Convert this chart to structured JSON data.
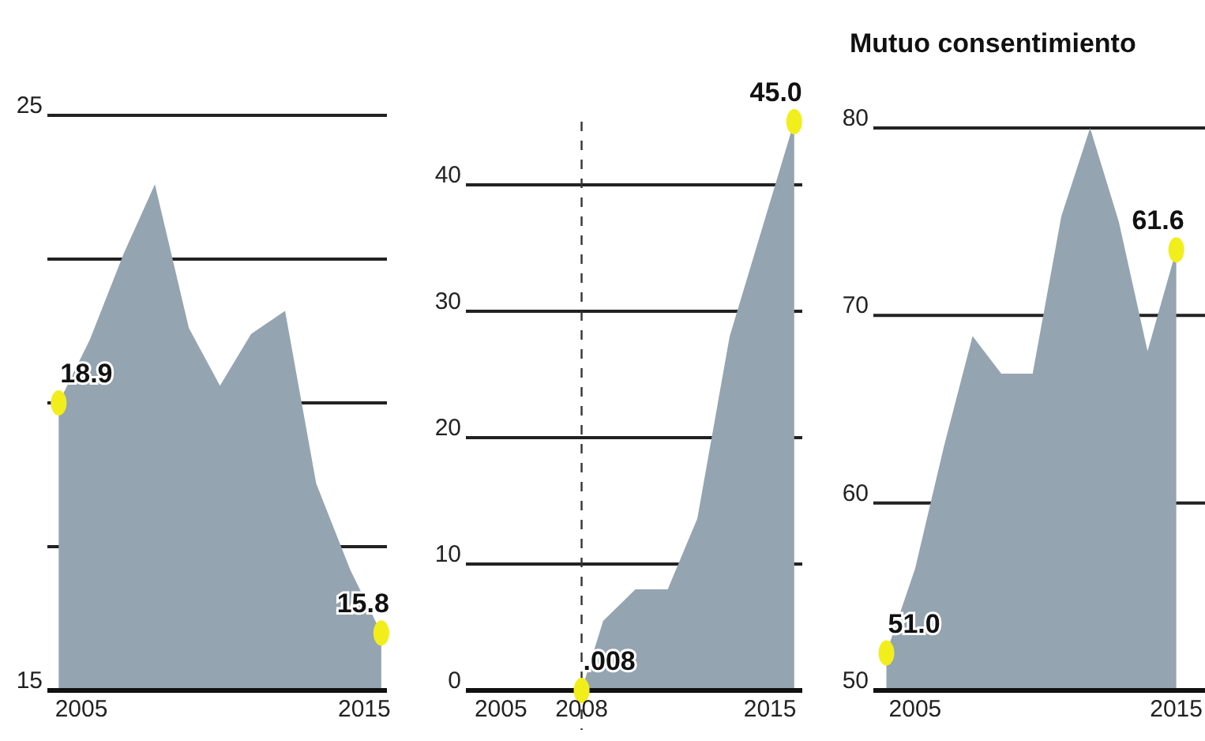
{
  "chart_data": [
    {
      "type": "area",
      "x": [
        2004.2,
        2005.3,
        2006.5,
        2007.6,
        2008.8,
        2009.9,
        2011.0,
        2012.2,
        2013.3,
        2014.5,
        2015.6
      ],
      "xlim": [
        2003.8,
        2015.8
      ],
      "xticks": [
        2005,
        2015
      ],
      "ylim": [
        15,
        25
      ],
      "yticks": [
        15,
        {
          "value": 17.5,
          "label": null
        },
        {
          "value": 20,
          "label": null
        },
        {
          "value": 22.5,
          "label": null
        },
        25
      ],
      "grid": "y",
      "annotations": [
        {
          "text": "18.9",
          "x": 2004.2,
          "y": 20.0
        },
        {
          "text": "15.8",
          "x": 2015.6,
          "y": 16.0
        }
      ],
      "series": [
        {
          "color": "#95a4b1",
          "values": [
            20.0,
            21.1,
            22.6,
            23.8,
            21.3,
            20.3,
            21.2,
            21.6,
            18.6,
            17.1,
            16.0
          ]
        }
      ]
    },
    {
      "type": "area",
      "x": [
        2004.1,
        2005.3,
        2006.5,
        2008.0,
        2008.8,
        2010.0,
        2011.2,
        2012.3,
        2013.5,
        2014.7,
        2015.9
      ],
      "xlim": [
        2003.7,
        2016.2
      ],
      "xticks": [
        2005,
        2008,
        2015
      ],
      "ylim": [
        0,
        45
      ],
      "yticks": [
        0,
        10,
        20,
        30,
        40
      ],
      "grid": "y",
      "ref_lines": [
        {
          "axis": "x",
          "value": 2008,
          "line_style": "dashed"
        }
      ],
      "annotations": [
        {
          "text": ".008",
          "x": 2008.0,
          "y": 0
        },
        {
          "text": "45.0",
          "x": 2015.9,
          "y": 45
        }
      ],
      "series": [
        {
          "color": "#95a4b1",
          "values": [
            0,
            0,
            0,
            0,
            5.5,
            8,
            8,
            13.6,
            28,
            36.5,
            45
          ]
        }
      ]
    },
    {
      "type": "area",
      "title": "Mutuo consentimiento",
      "x": [
        2003.9,
        2005.0,
        2006.1,
        2007.2,
        2008.3,
        2009.5,
        2010.6,
        2011.7,
        2012.8,
        2013.9,
        2015.0
      ],
      "xlim": [
        2003.4,
        2016.1
      ],
      "xticks": [
        2005,
        2015
      ],
      "ylim": [
        50,
        80
      ],
      "yticks": [
        50,
        60,
        70,
        80
      ],
      "grid": "y",
      "annotations": [
        {
          "text": "51.0",
          "x": 2003.9,
          "y": 52.0
        },
        {
          "text": "61.6",
          "x": 2015.0,
          "y": 73.5
        }
      ],
      "series": [
        {
          "color": "#95a4b1",
          "values": [
            52.0,
            56.5,
            63,
            68.9,
            66.9,
            66.9,
            75.3,
            80,
            75,
            68.1,
            73.5
          ]
        }
      ]
    }
  ]
}
